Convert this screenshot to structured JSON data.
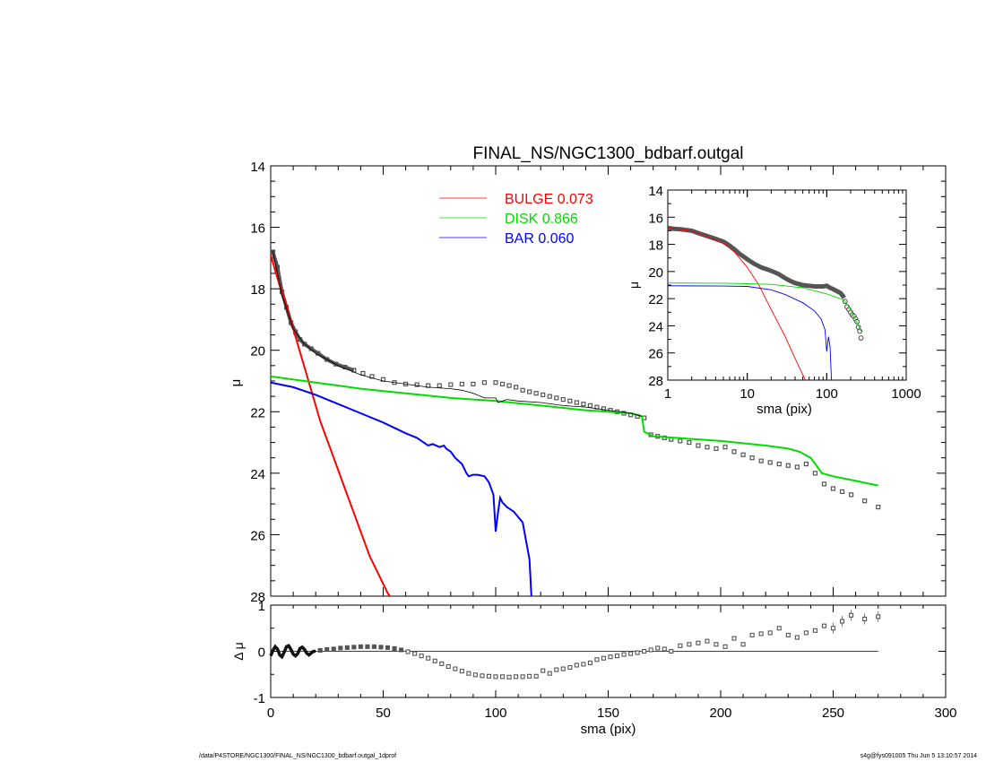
{
  "footer": {
    "left": "/data/P4STORE/NGC1300/FINAL_NS/NGC1300_bdbarf.outgal_1dprof",
    "right": "s4g@fys091005  Thu Jun  5 13:10:57 2014"
  },
  "chart_data": [
    {
      "id": "main",
      "type": "line",
      "title": "FINAL_NS/NGC1300_bdbarf.outgal",
      "xlabel": "",
      "ylabel": "μ",
      "xlim": [
        0,
        300
      ],
      "ylim": [
        28,
        14
      ],
      "y_reversed": true,
      "yticks": [
        14,
        16,
        18,
        20,
        22,
        24,
        26,
        28
      ],
      "legend": {
        "placement": "top-center",
        "entries": [
          {
            "name": "BULGE",
            "value": "0.073",
            "color": "#ff0000"
          },
          {
            "name": "DISK",
            "value": "0.866",
            "color": "#00dd00"
          },
          {
            "name": "BAR",
            "value": "0.060",
            "color": "#0000ff"
          }
        ]
      },
      "observed_points": {
        "x": [
          1,
          3,
          5,
          7,
          9,
          11,
          13,
          15,
          18,
          21,
          25,
          29,
          33,
          37,
          41,
          45,
          50,
          55,
          60,
          65,
          70,
          75,
          80,
          85,
          90,
          95,
          100,
          103,
          106,
          109,
          112,
          115,
          118,
          121,
          124,
          127,
          130,
          133,
          136,
          139,
          142,
          145,
          148,
          151,
          154,
          157,
          160,
          163,
          166,
          169,
          172,
          175,
          178,
          182,
          186,
          190,
          194,
          198,
          202,
          206,
          210,
          214,
          218,
          222,
          226,
          230,
          234,
          238,
          242,
          246,
          250,
          254,
          258,
          264,
          270
        ],
        "y": [
          16.8,
          17.3,
          18.1,
          18.6,
          19.1,
          19.4,
          19.65,
          19.8,
          19.95,
          20.1,
          20.3,
          20.45,
          20.55,
          20.65,
          20.75,
          20.85,
          20.95,
          21.05,
          21.1,
          21.12,
          21.15,
          21.15,
          21.12,
          21.1,
          21.1,
          21.05,
          21.05,
          21.1,
          21.15,
          21.2,
          21.3,
          21.35,
          21.4,
          21.45,
          21.5,
          21.55,
          21.6,
          21.65,
          21.7,
          21.75,
          21.8,
          21.85,
          21.9,
          21.95,
          22.0,
          22.05,
          22.1,
          22.15,
          22.2,
          22.75,
          22.8,
          22.85,
          22.9,
          22.95,
          23.0,
          23.1,
          23.15,
          23.2,
          23.15,
          23.3,
          23.4,
          23.5,
          23.6,
          23.65,
          23.7,
          23.75,
          23.8,
          23.7,
          24.0,
          24.35,
          24.5,
          24.6,
          24.7,
          24.9,
          25.1
        ]
      },
      "series": [
        {
          "name": "BULGE",
          "color": "#ff0000",
          "x": [
            0,
            2,
            4,
            6,
            8,
            10,
            12,
            14,
            16,
            18,
            20,
            22,
            24,
            26,
            28,
            30,
            32,
            34,
            36,
            38,
            40,
            42,
            44,
            46,
            48,
            50,
            52,
            54
          ],
          "y": [
            16.9,
            17.4,
            17.9,
            18.3,
            18.8,
            19.3,
            19.8,
            20.3,
            20.8,
            21.3,
            21.8,
            22.3,
            22.7,
            23.1,
            23.5,
            23.9,
            24.3,
            24.7,
            25.1,
            25.5,
            25.9,
            26.3,
            26.7,
            27.0,
            27.3,
            27.6,
            27.9,
            28.1
          ]
        },
        {
          "name": "DISK",
          "color": "#00dd00",
          "x": [
            0,
            20,
            40,
            60,
            80,
            100,
            120,
            140,
            160,
            165,
            166,
            170,
            180,
            200,
            220,
            230,
            235,
            240,
            245,
            250,
            260,
            270
          ],
          "y": [
            20.85,
            21.05,
            21.25,
            21.4,
            21.55,
            21.65,
            21.8,
            21.95,
            22.05,
            22.15,
            22.65,
            22.8,
            22.85,
            22.95,
            23.1,
            23.2,
            23.3,
            23.5,
            24.0,
            24.1,
            24.25,
            24.4
          ]
        },
        {
          "name": "BAR",
          "color": "#0000ff",
          "x": [
            0,
            10,
            20,
            30,
            40,
            50,
            60,
            65,
            68,
            70,
            72,
            75,
            77,
            78,
            80,
            82,
            85,
            87,
            88,
            90,
            92,
            95,
            97,
            99,
            100,
            101,
            102,
            103,
            105,
            108,
            112,
            115,
            116
          ],
          "y": [
            21.05,
            21.2,
            21.45,
            21.75,
            22.05,
            22.35,
            22.7,
            22.85,
            23.0,
            23.1,
            23.05,
            23.15,
            23.1,
            23.2,
            23.3,
            23.5,
            23.7,
            24.0,
            24.1,
            24.05,
            24.05,
            24.1,
            24.3,
            24.7,
            25.9,
            25.3,
            24.8,
            24.95,
            25.1,
            25.25,
            25.6,
            26.8,
            28.2
          ]
        },
        {
          "name": "model",
          "color": "#000000",
          "x": [
            1,
            5,
            10,
            15,
            20,
            25,
            30,
            40,
            50,
            60,
            70,
            80,
            85,
            90,
            95,
            100,
            101,
            105,
            110,
            120,
            130,
            140,
            150,
            160,
            165
          ],
          "y": [
            16.8,
            18.2,
            19.3,
            19.8,
            20.1,
            20.3,
            20.5,
            20.8,
            21.0,
            21.1,
            21.2,
            21.25,
            21.3,
            21.4,
            21.55,
            21.55,
            21.7,
            21.6,
            21.65,
            21.7,
            21.8,
            21.85,
            21.95,
            22.05,
            22.15
          ]
        }
      ]
    },
    {
      "id": "residual",
      "type": "scatter",
      "xlabel": "sma (pix)",
      "ylabel": "Δ μ",
      "xlim": [
        0,
        300
      ],
      "ylim": [
        -1,
        1
      ],
      "xticks": [
        0,
        50,
        100,
        150,
        200,
        250,
        300
      ],
      "yticks": [
        1,
        0,
        -1
      ],
      "points": {
        "x": [
          22,
          25,
          28,
          31,
          34,
          37,
          40,
          43,
          46,
          49,
          52,
          55,
          58,
          61,
          64,
          67,
          70,
          73,
          76,
          79,
          82,
          85,
          88,
          91,
          94,
          97,
          100,
          103,
          106,
          109,
          112,
          115,
          118,
          121,
          124,
          127,
          130,
          133,
          136,
          139,
          142,
          145,
          148,
          151,
          154,
          157,
          160,
          163,
          166,
          169,
          172,
          175,
          178,
          182,
          186,
          190,
          194,
          198,
          202,
          206,
          210,
          214,
          218,
          222,
          226,
          230,
          234,
          238,
          242,
          246,
          250,
          254,
          258,
          264,
          270
        ],
        "y": [
          0.02,
          0.04,
          0.05,
          0.07,
          0.08,
          0.09,
          0.1,
          0.1,
          0.1,
          0.09,
          0.08,
          0.06,
          0.03,
          -0.01,
          -0.05,
          -0.1,
          -0.15,
          -0.21,
          -0.27,
          -0.33,
          -0.38,
          -0.43,
          -0.48,
          -0.51,
          -0.53,
          -0.54,
          -0.55,
          -0.55,
          -0.56,
          -0.55,
          -0.55,
          -0.54,
          -0.54,
          -0.42,
          -0.48,
          -0.4,
          -0.38,
          -0.35,
          -0.3,
          -0.28,
          -0.25,
          -0.18,
          -0.15,
          -0.12,
          -0.1,
          -0.07,
          -0.05,
          -0.03,
          0.0,
          0.03,
          0.07,
          0.05,
          0.0,
          0.12,
          0.15,
          0.18,
          0.22,
          0.15,
          0.1,
          0.28,
          0.15,
          0.35,
          0.38,
          0.4,
          0.5,
          0.35,
          0.3,
          0.4,
          0.45,
          0.55,
          0.5,
          0.65,
          0.78,
          0.7,
          0.75
        ]
      },
      "wiggle": {
        "x": [
          0,
          1,
          2,
          3,
          4,
          5,
          6,
          7,
          8,
          9,
          10,
          11,
          12,
          13,
          14,
          15,
          16,
          17,
          18,
          19,
          20
        ],
        "y": [
          -0.1,
          0.02,
          0.1,
          0.05,
          -0.08,
          -0.12,
          -0.02,
          0.1,
          0.12,
          0.04,
          -0.06,
          -0.1,
          -0.05,
          0.06,
          0.09,
          0.04,
          -0.04,
          -0.08,
          -0.04,
          0.0,
          0.0
        ]
      }
    },
    {
      "id": "inset",
      "type": "line",
      "xlabel": "sma (pix)",
      "ylabel": "μ",
      "xscale": "log",
      "xlim": [
        1,
        1000
      ],
      "ylim": [
        28,
        14
      ],
      "xticks": [
        1,
        10,
        100,
        1000
      ],
      "yticks": [
        14,
        16,
        18,
        20,
        22,
        24,
        26,
        28
      ],
      "observed_points": {
        "x": [
          1,
          1.2,
          1.5,
          2,
          2.5,
          3,
          4,
          5,
          6,
          7,
          8,
          10,
          12,
          15,
          18,
          21,
          25,
          30,
          35,
          40,
          50,
          60,
          70,
          80,
          90,
          100,
          110,
          120,
          130,
          140,
          150,
          160,
          165,
          170,
          180,
          190,
          200,
          210,
          220,
          230,
          240,
          250,
          260,
          270
        ],
        "y": [
          16.8,
          16.85,
          16.9,
          17.0,
          17.2,
          17.35,
          17.6,
          17.8,
          18.1,
          18.4,
          18.7,
          19.1,
          19.4,
          19.7,
          19.85,
          20.0,
          20.2,
          20.5,
          20.7,
          20.85,
          21.0,
          21.05,
          21.1,
          21.1,
          21.1,
          21.05,
          21.2,
          21.3,
          21.4,
          21.5,
          21.6,
          21.8,
          21.95,
          22.2,
          22.6,
          22.8,
          23.0,
          23.2,
          23.3,
          23.5,
          23.7,
          24.1,
          24.4,
          24.9
        ]
      },
      "series": [
        {
          "name": "BULGE",
          "color": "#ff0000",
          "x": [
            1,
            2,
            3,
            5,
            7,
            10,
            14,
            20,
            25,
            30,
            40,
            50,
            55
          ],
          "y": [
            16.8,
            17.0,
            17.4,
            17.9,
            18.6,
            19.7,
            21.0,
            22.8,
            23.9,
            24.8,
            26.4,
            27.6,
            28.1
          ]
        },
        {
          "name": "DISK",
          "color": "#00dd00",
          "x": [
            1,
            5,
            10,
            20,
            50,
            100,
            165,
            200,
            270
          ],
          "y": [
            20.85,
            20.86,
            20.9,
            20.95,
            21.2,
            21.65,
            22.1,
            22.8,
            24.4
          ]
        },
        {
          "name": "BAR",
          "color": "#0000ff",
          "x": [
            1,
            5,
            10,
            20,
            30,
            50,
            70,
            85,
            95,
            100,
            105,
            110,
            115
          ],
          "y": [
            21.05,
            21.07,
            21.1,
            21.35,
            21.7,
            22.3,
            22.9,
            23.5,
            24.3,
            25.9,
            24.8,
            25.5,
            28.2
          ]
        }
      ]
    }
  ]
}
